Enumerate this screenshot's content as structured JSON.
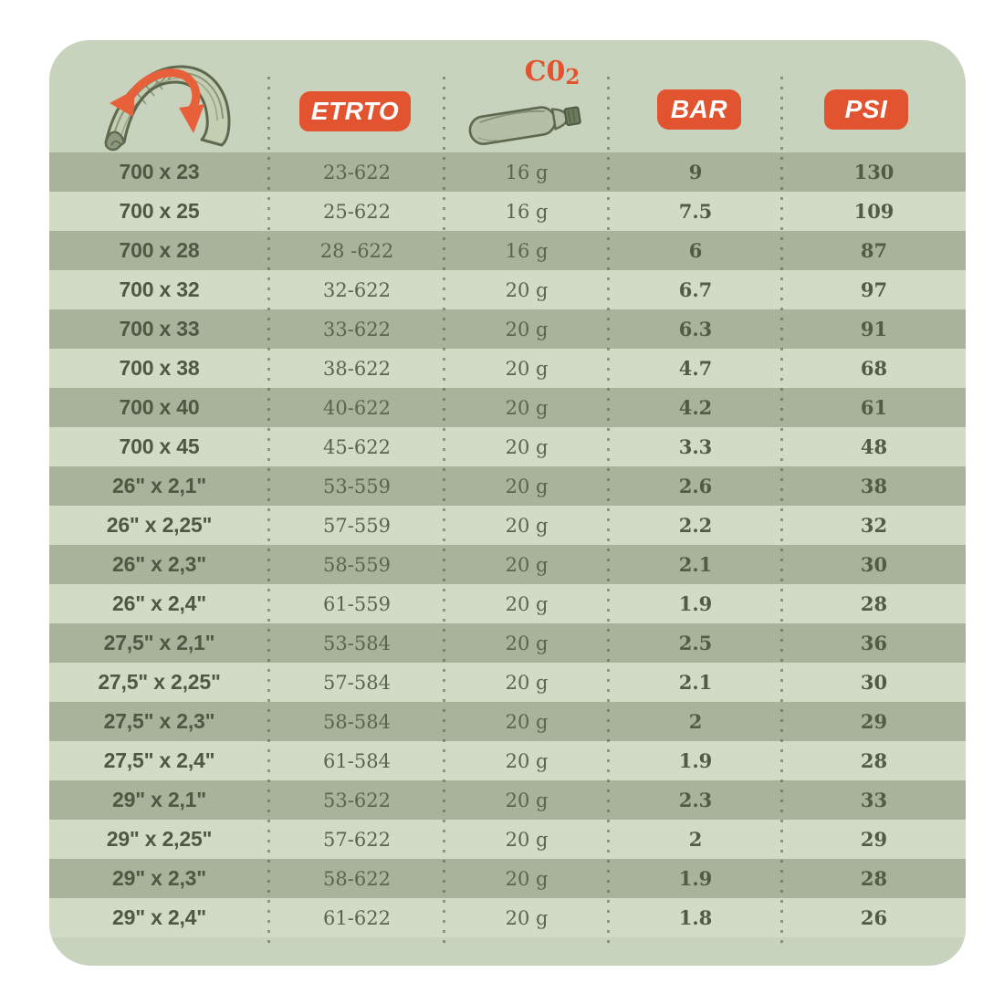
{
  "card": {
    "background_color": "#c8d3bd",
    "page_background": "#ffffff"
  },
  "colors": {
    "accent_orange": "#e2532f",
    "arrow_orange": "#e8603a",
    "dark_row": "#a9b39c",
    "light_row": "#d2dbc5",
    "size_text": "#4d5942",
    "value_text": "#5a654c",
    "outline_olive": "#5d684e",
    "dotted_line": "rgba(80,92,64,0.55)"
  },
  "header": {
    "tire_icon": "tire-cross-section-with-orange-double-arrow",
    "etrto_label": "ETRTO",
    "co2_label_main": "C0",
    "co2_label_sub": "2",
    "co2_icon": "co2-cartridge",
    "bar_label": "BAR",
    "psi_label": "PSI"
  },
  "chart_data": {
    "type": "table",
    "title": "Bike tire size vs CO2 cartridge and inflation pressure",
    "columns": [
      "Tire size",
      "ETRTO",
      "CO2 cartridge",
      "BAR",
      "PSI"
    ],
    "rows": [
      [
        "700 x 23",
        "23-622",
        "16 g",
        "9",
        "130"
      ],
      [
        "700 x 25",
        "25-622",
        "16 g",
        "7.5",
        "109"
      ],
      [
        "700 x 28",
        "28 -622",
        "16 g",
        "6",
        "87"
      ],
      [
        "700 x 32",
        "32-622",
        "20 g",
        "6.7",
        "97"
      ],
      [
        "700 x 33",
        "33-622",
        "20 g",
        "6.3",
        "91"
      ],
      [
        "700 x 38",
        "38-622",
        "20 g",
        "4.7",
        "68"
      ],
      [
        "700 x 40",
        "40-622",
        "20 g",
        "4.2",
        "61"
      ],
      [
        "700 x 45",
        "45-622",
        "20 g",
        "3.3",
        "48"
      ],
      [
        "26\" x 2,1\"",
        "53-559",
        "20 g",
        "2.6",
        "38"
      ],
      [
        "26\" x 2,25\"",
        "57-559",
        "20 g",
        "2.2",
        "32"
      ],
      [
        "26\" x 2,3\"",
        "58-559",
        "20 g",
        "2.1",
        "30"
      ],
      [
        "26\" x 2,4\"",
        "61-559",
        "20 g",
        "1.9",
        "28"
      ],
      [
        "27,5\" x 2,1\"",
        "53-584",
        "20 g",
        "2.5",
        "36"
      ],
      [
        "27,5\" x 2,25\"",
        "57-584",
        "20 g",
        "2.1",
        "30"
      ],
      [
        "27,5\" x 2,3\"",
        "58-584",
        "20 g",
        "2",
        "29"
      ],
      [
        "27,5\" x 2,4\"",
        "61-584",
        "20 g",
        "1.9",
        "28"
      ],
      [
        "29\" x 2,1\"",
        "53-622",
        "20 g",
        "2.3",
        "33"
      ],
      [
        "29\" x 2,25\"",
        "57-622",
        "20 g",
        "2",
        "29"
      ],
      [
        "29\" x 2,3\"",
        "58-622",
        "20 g",
        "1.9",
        "28"
      ],
      [
        "29\" x 2,4\"",
        "61-622",
        "20 g",
        "1.8",
        "26"
      ]
    ],
    "row_striping": "first row dark, alternating dark/light",
    "legend_position": "none",
    "grid": "dotted vertical column separators"
  }
}
